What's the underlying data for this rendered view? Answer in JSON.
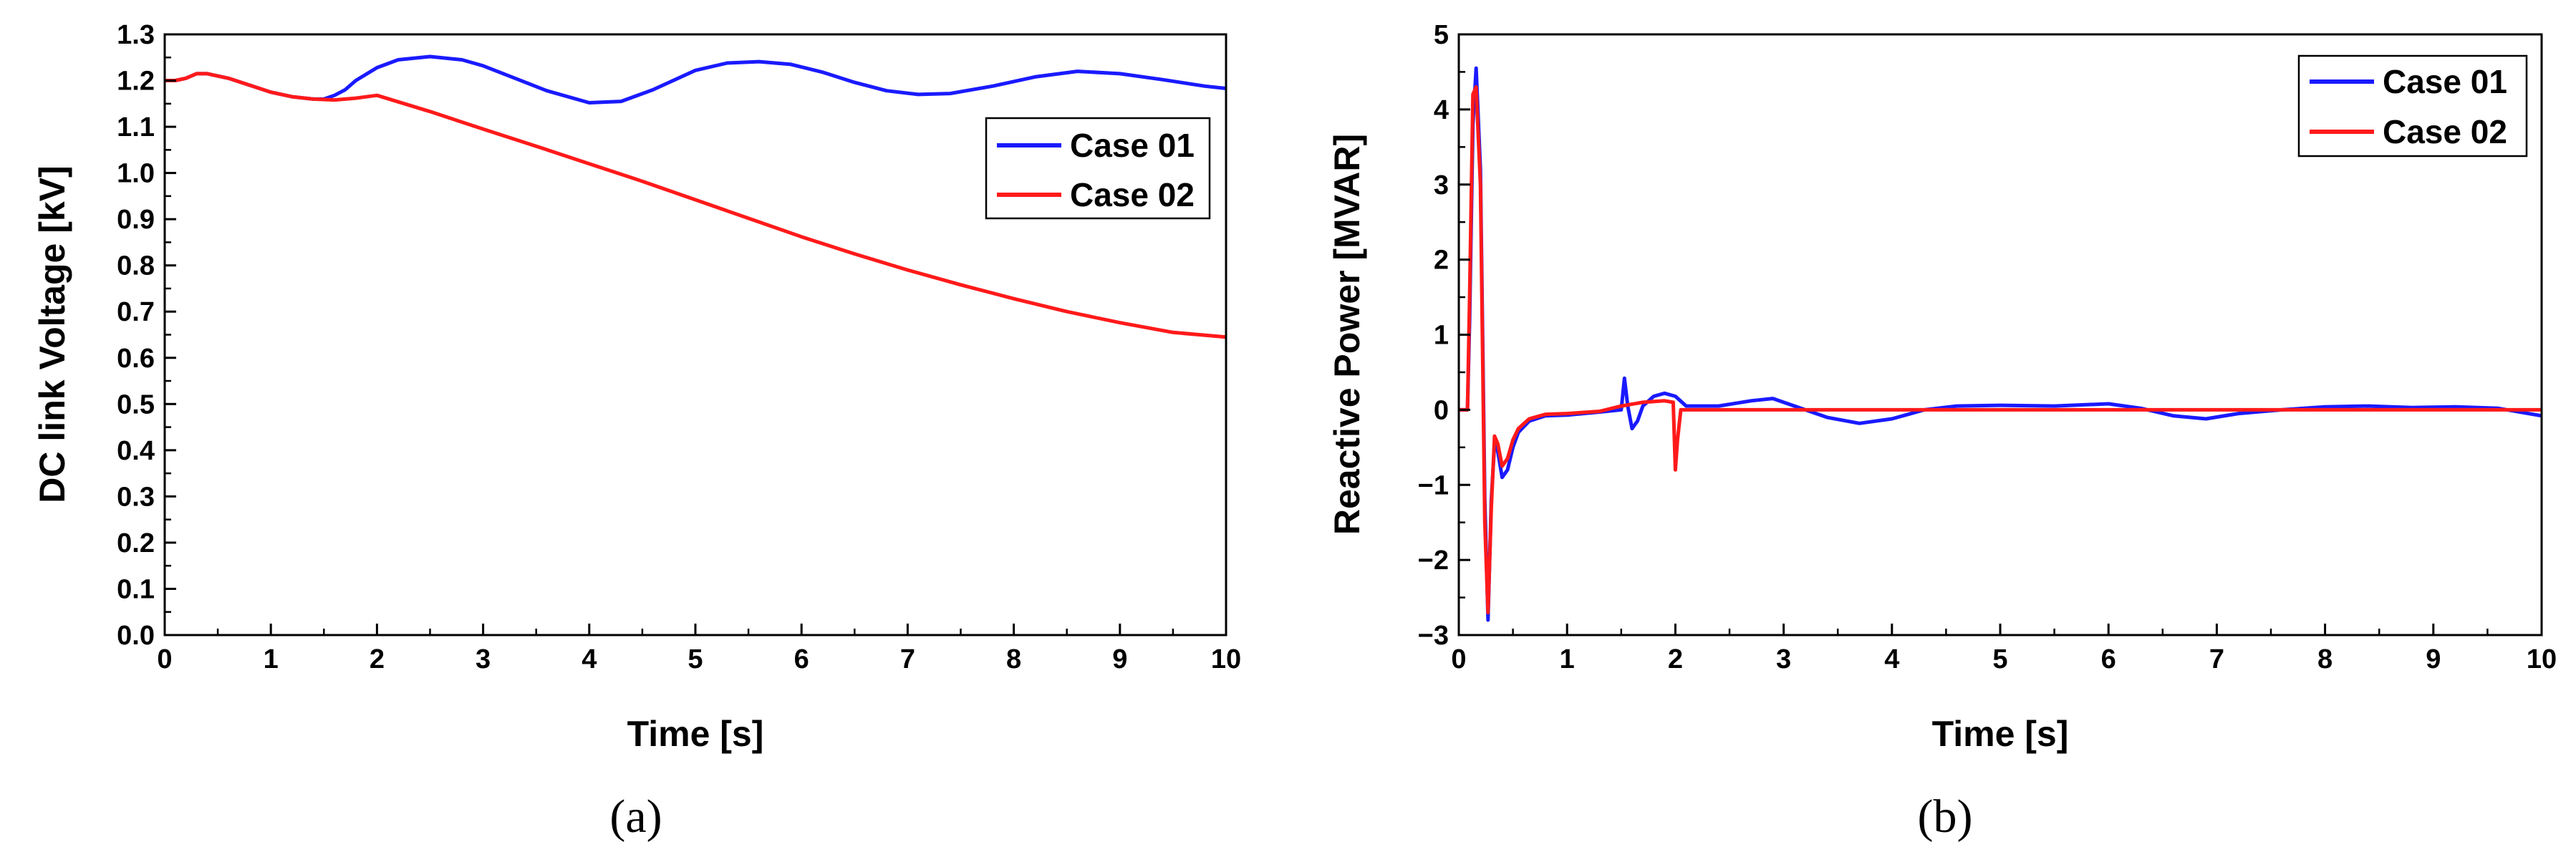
{
  "chart_data": [
    {
      "type": "line",
      "panel_label": "(a)",
      "xlabel": "Time [s]",
      "ylabel": "DC link Voltage [kV]",
      "xlim": [
        0,
        10
      ],
      "ylim": [
        0,
        1.3
      ],
      "xticks": [
        0,
        1,
        2,
        3,
        4,
        5,
        6,
        7,
        8,
        9,
        10
      ],
      "xtick_labels": [
        "0",
        "1",
        "2",
        "3",
        "4",
        "5",
        "6",
        "7",
        "8",
        "9",
        "10"
      ],
      "yticks": [
        0,
        0.1,
        0.2,
        0.3,
        0.4,
        0.5,
        0.6,
        0.7,
        0.8,
        0.9,
        1.0,
        1.1,
        1.2,
        1.3
      ],
      "ytick_labels": [
        "0.0",
        "0.1",
        "0.2",
        "0.3",
        "0.4",
        "0.5",
        "0.6",
        "0.7",
        "0.8",
        "0.9",
        "1.0",
        "1.1",
        "1.2",
        "1.3"
      ],
      "grid": false,
      "legend_position": "upper-right",
      "series": [
        {
          "name": "Case 01",
          "color": "#1a1aff",
          "x": [
            0,
            0.1,
            0.2,
            0.3,
            0.4,
            0.6,
            0.8,
            1.0,
            1.2,
            1.4,
            1.5,
            1.6,
            1.7,
            1.8,
            2.0,
            2.2,
            2.5,
            2.8,
            3.0,
            3.3,
            3.6,
            4.0,
            4.3,
            4.6,
            5.0,
            5.3,
            5.6,
            5.9,
            6.2,
            6.5,
            6.8,
            7.1,
            7.4,
            7.8,
            8.2,
            8.6,
            9.0,
            9.4,
            9.8,
            10.0
          ],
          "y": [
            1.2,
            1.2,
            1.205,
            1.215,
            1.215,
            1.205,
            1.19,
            1.175,
            1.165,
            1.16,
            1.16,
            1.168,
            1.18,
            1.2,
            1.228,
            1.245,
            1.252,
            1.245,
            1.232,
            1.205,
            1.178,
            1.152,
            1.155,
            1.18,
            1.222,
            1.238,
            1.241,
            1.235,
            1.218,
            1.196,
            1.178,
            1.17,
            1.172,
            1.188,
            1.208,
            1.22,
            1.215,
            1.202,
            1.188,
            1.183
          ]
        },
        {
          "name": "Case 02",
          "color": "#ff1a1a",
          "x": [
            0,
            0.1,
            0.2,
            0.3,
            0.4,
            0.6,
            0.8,
            1.0,
            1.2,
            1.4,
            1.6,
            1.8,
            2.0,
            2.5,
            3.0,
            3.5,
            4.0,
            4.5,
            5.0,
            5.5,
            6.0,
            6.5,
            7.0,
            7.5,
            8.0,
            8.5,
            9.0,
            9.5,
            10.0
          ],
          "y": [
            1.2,
            1.2,
            1.205,
            1.215,
            1.215,
            1.205,
            1.19,
            1.175,
            1.165,
            1.16,
            1.158,
            1.162,
            1.168,
            1.133,
            1.095,
            1.058,
            1.02,
            0.982,
            0.942,
            0.902,
            0.862,
            0.825,
            0.79,
            0.758,
            0.728,
            0.7,
            0.676,
            0.655,
            0.645
          ]
        }
      ]
    },
    {
      "type": "line",
      "panel_label": "(b)",
      "xlabel": "Time [s]",
      "ylabel": "Reactive Power [MVAR]",
      "xlim": [
        0,
        10
      ],
      "ylim": [
        -3,
        5
      ],
      "xticks": [
        0,
        1,
        2,
        3,
        4,
        5,
        6,
        7,
        8,
        9,
        10
      ],
      "xtick_labels": [
        "0",
        "1",
        "2",
        "3",
        "4",
        "5",
        "6",
        "7",
        "8",
        "9",
        "10"
      ],
      "yticks": [
        -3,
        -2,
        -1,
        0,
        1,
        2,
        3,
        4,
        5
      ],
      "ytick_labels": [
        "−3",
        "−2",
        "−1",
        "0",
        "1",
        "2",
        "3",
        "4",
        "5"
      ],
      "grid": false,
      "legend_position": "upper-right",
      "series": [
        {
          "name": "Case 01",
          "color": "#1a1aff",
          "x": [
            0,
            0.08,
            0.1,
            0.13,
            0.16,
            0.2,
            0.24,
            0.27,
            0.3,
            0.33,
            0.36,
            0.4,
            0.45,
            0.5,
            0.55,
            0.65,
            0.8,
            1.0,
            1.3,
            1.5,
            1.53,
            1.56,
            1.6,
            1.65,
            1.7,
            1.8,
            1.9,
            2.0,
            2.1,
            2.4,
            2.7,
            2.9,
            3.1,
            3.4,
            3.7,
            4.0,
            4.3,
            4.6,
            5.0,
            5.5,
            6.0,
            6.3,
            6.6,
            6.9,
            7.2,
            7.6,
            8.0,
            8.4,
            8.8,
            9.2,
            9.6,
            10.0
          ],
          "y": [
            0,
            0,
            1.2,
            3.8,
            4.55,
            3.2,
            -1.2,
            -2.8,
            -1.2,
            -0.45,
            -0.55,
            -0.9,
            -0.8,
            -0.5,
            -0.3,
            -0.15,
            -0.08,
            -0.07,
            -0.03,
            0.0,
            0.42,
            0.05,
            -0.25,
            -0.15,
            0.05,
            0.18,
            0.22,
            0.18,
            0.05,
            0.05,
            0.12,
            0.15,
            0.05,
            -0.1,
            -0.18,
            -0.12,
            0.0,
            0.05,
            0.06,
            0.05,
            0.08,
            0.02,
            -0.08,
            -0.12,
            -0.05,
            0.0,
            0.04,
            0.05,
            0.03,
            0.04,
            0.02,
            -0.08
          ]
        },
        {
          "name": "Case 02",
          "color": "#ff1a1a",
          "x": [
            0,
            0.08,
            0.1,
            0.13,
            0.16,
            0.2,
            0.24,
            0.27,
            0.3,
            0.33,
            0.36,
            0.4,
            0.45,
            0.5,
            0.55,
            0.65,
            0.8,
            1.0,
            1.3,
            1.5,
            1.7,
            1.9,
            1.98,
            2.0,
            2.02,
            2.05,
            2.1,
            2.3,
            3.0,
            4.0,
            5.0,
            6.0,
            7.0,
            8.0,
            9.0,
            10.0
          ],
          "y": [
            0,
            0,
            1.5,
            4.2,
            4.3,
            3.0,
            -1.5,
            -2.7,
            -1.3,
            -0.35,
            -0.45,
            -0.75,
            -0.65,
            -0.4,
            -0.25,
            -0.12,
            -0.06,
            -0.05,
            -0.02,
            0.05,
            0.1,
            0.12,
            0.1,
            -0.8,
            -0.4,
            0.0,
            0.0,
            0.0,
            0.0,
            0.0,
            0.0,
            0.0,
            0.0,
            0.0,
            0.0,
            0.0
          ]
        }
      ]
    }
  ]
}
